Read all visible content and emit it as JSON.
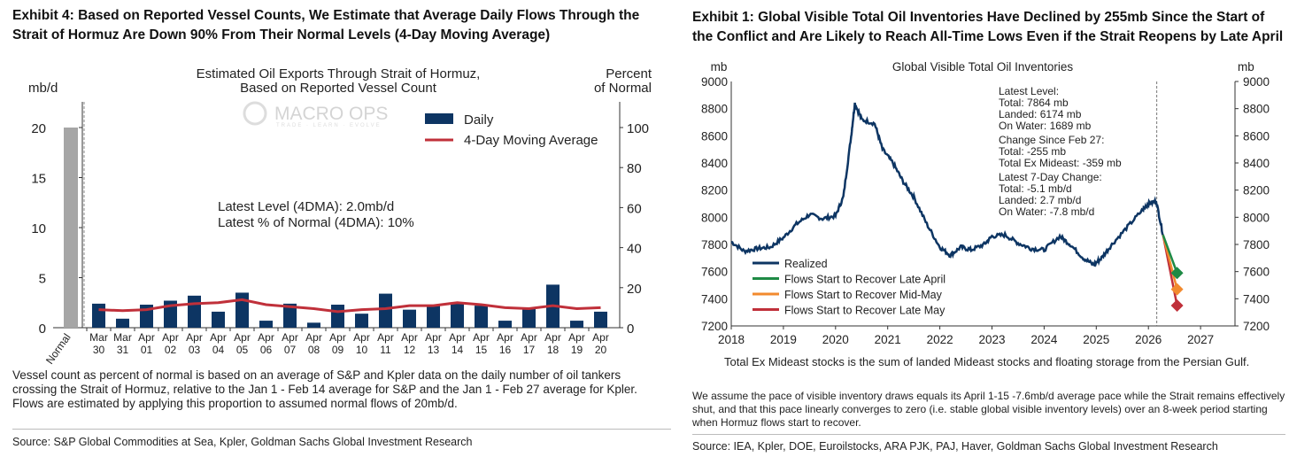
{
  "left": {
    "exhibit_title": "Exhibit 4: Based on Reported Vessel Counts, We Estimate that Average Daily Flows Through the Strait of Hormuz Are Down 90% From Their Normal Levels (4-Day Moving Average)",
    "watermark": "MACRO OPS",
    "watermark_tag": "TRADE · LEARN · EVOLVE",
    "annotation_1": "Latest Level (4DMA): 2.0mb/d",
    "annotation_2": "Latest % of Normal (4DMA): 10%",
    "footnote": "Vessel count as percent of normal is based on an average of S&P and Kpler data on the daily number of oil tankers crossing the Strait of Hormuz, relative to the Jan 1 - Feb 14 average for S&P and the Jan 1 - Feb 27 average for Kpler. Flows are estimated by applying this proportion to assumed normal flows of 20mb/d.",
    "source": "Source: S&P Global Commodities at Sea, Kpler, Goldman Sachs Global Investment Research"
  },
  "right": {
    "exhibit_title": "Exhibit 1: Global Visible Total Oil Inventories Have Declined by 255mb Since the Start of the Conflict and Are Likely to Reach All-Time Lows Even if the Strait Reopens by Late April",
    "annotation": [
      "Latest Level:",
      "Total: 7864 mb",
      "Landed: 6174 mb",
      "On Water: 1689 mb",
      "Change Since Feb 27:",
      "Total: -255 mb",
      "Total Ex Mideast: -359 mb",
      "Latest 7-Day Change:",
      "Total: -5.1 mb/d",
      "Landed: 2.7 mb/d",
      "On Water: -7.8 mb/d"
    ],
    "chart_note": "Total Ex Mideast stocks is the sum of landed Mideast stocks and floating storage from the Persian Gulf.",
    "footnote": "We assume the pace of visible inventory draws equals its April 1-15 -7.6mb/d average pace while the Strait remains effectively shut, and that this pace linearly converges to zero (i.e. stable global visible inventory levels) over an 8-week period starting when Hormuz flows start to recover.",
    "source": "Source: IEA, Kpler, DOE, Euroilstocks, ARA PJK, PAJ, Haver, Goldman Sachs Global Investment Research"
  },
  "chart_data": [
    {
      "type": "bar",
      "title": "Estimated Oil Exports Through Strait of Hormuz, Based on Reported Vessel Count",
      "ylabel": "mb/d",
      "y2label": "Percent of Normal",
      "ylim": [
        0,
        22.5
      ],
      "y2lim": [
        0,
        112.5
      ],
      "yticks": [
        0,
        5,
        10,
        15,
        20
      ],
      "y2ticks": [
        0,
        20,
        40,
        60,
        80,
        100
      ],
      "normal": {
        "label": "Normal",
        "value": 20,
        "color": "#a6a6a6"
      },
      "categories": [
        [
          "Mar",
          "30"
        ],
        [
          "Mar",
          "31"
        ],
        [
          "Apr",
          "01"
        ],
        [
          "Apr",
          "02"
        ],
        [
          "Apr",
          "03"
        ],
        [
          "Apr",
          "04"
        ],
        [
          "Apr",
          "05"
        ],
        [
          "Apr",
          "06"
        ],
        [
          "Apr",
          "07"
        ],
        [
          "Apr",
          "08"
        ],
        [
          "Apr",
          "09"
        ],
        [
          "Apr",
          "10"
        ],
        [
          "Apr",
          "11"
        ],
        [
          "Apr",
          "12"
        ],
        [
          "Apr",
          "13"
        ],
        [
          "Apr",
          "14"
        ],
        [
          "Apr",
          "15"
        ],
        [
          "Apr",
          "16"
        ],
        [
          "Apr",
          "17"
        ],
        [
          "Apr",
          "18"
        ],
        [
          "Apr",
          "19"
        ],
        [
          "Apr",
          "20"
        ]
      ],
      "series": [
        {
          "name": "Daily",
          "type": "bar",
          "color": "#0d3563",
          "values": [
            2.4,
            0.9,
            2.3,
            2.7,
            3.2,
            1.6,
            3.5,
            0.7,
            2.4,
            0.5,
            2.3,
            1.4,
            3.4,
            1.8,
            2.3,
            2.5,
            2.2,
            0.7,
            1.9,
            4.3,
            0.7,
            1.6
          ]
        },
        {
          "name": "4-Day Moving Average",
          "type": "line",
          "color": "#c0303a",
          "values": [
            1.8,
            1.7,
            1.8,
            2.2,
            2.4,
            2.5,
            2.8,
            2.3,
            2.1,
            1.9,
            1.6,
            1.8,
            1.9,
            2.2,
            2.2,
            2.5,
            2.3,
            2.0,
            1.9,
            2.2,
            1.9,
            2.0
          ]
        }
      ]
    },
    {
      "type": "line",
      "title": "Global Visible Total Oil Inventories",
      "ylabel": "mb",
      "y2label": "mb",
      "xlim": [
        2018,
        2027.5
      ],
      "ylim": [
        7200,
        9000
      ],
      "xticks": [
        2018,
        2019,
        2020,
        2021,
        2022,
        2023,
        2024,
        2025,
        2026,
        2027
      ],
      "yticks": [
        7200,
        7400,
        7600,
        7800,
        8000,
        8200,
        8400,
        8600,
        8800,
        9000
      ],
      "vline_x": 2026.16,
      "series": [
        {
          "name": "Realized",
          "color": "#0d3563",
          "x": [
            2018,
            2018.25,
            2018.5,
            2018.75,
            2019,
            2019.25,
            2019.5,
            2019.75,
            2020,
            2020.15,
            2020.3,
            2020.37,
            2020.5,
            2020.75,
            2020.9,
            2021.1,
            2021.3,
            2021.5,
            2021.75,
            2022,
            2022.2,
            2022.4,
            2022.6,
            2022.85,
            2023,
            2023.25,
            2023.5,
            2023.75,
            2024,
            2024.3,
            2024.5,
            2024.75,
            2024.95,
            2025.1,
            2025.3,
            2025.6,
            2025.9,
            2026,
            2026.15,
            2026.28
          ],
          "y": [
            7820,
            7750,
            7770,
            7780,
            7850,
            7950,
            8020,
            7990,
            8010,
            8150,
            8600,
            8840,
            8720,
            8690,
            8500,
            8400,
            8260,
            8150,
            7950,
            7780,
            7720,
            7780,
            7760,
            7800,
            7860,
            7870,
            7810,
            7770,
            7760,
            7860,
            7800,
            7700,
            7650,
            7700,
            7800,
            7930,
            8060,
            8100,
            8120,
            7870
          ]
        },
        {
          "name": "Flows Start to Recover Late April",
          "color": "#1e8a45",
          "x": [
            2026.28,
            2026.55
          ],
          "y": [
            7870,
            7590
          ]
        },
        {
          "name": "Flows Start to Recover Mid-May",
          "color": "#f28a2e",
          "x": [
            2026.28,
            2026.55
          ],
          "y": [
            7870,
            7470
          ]
        },
        {
          "name": "Flows Start to Recover Late May",
          "color": "#c0303a",
          "x": [
            2026.28,
            2026.55
          ],
          "y": [
            7870,
            7350
          ]
        }
      ]
    }
  ]
}
